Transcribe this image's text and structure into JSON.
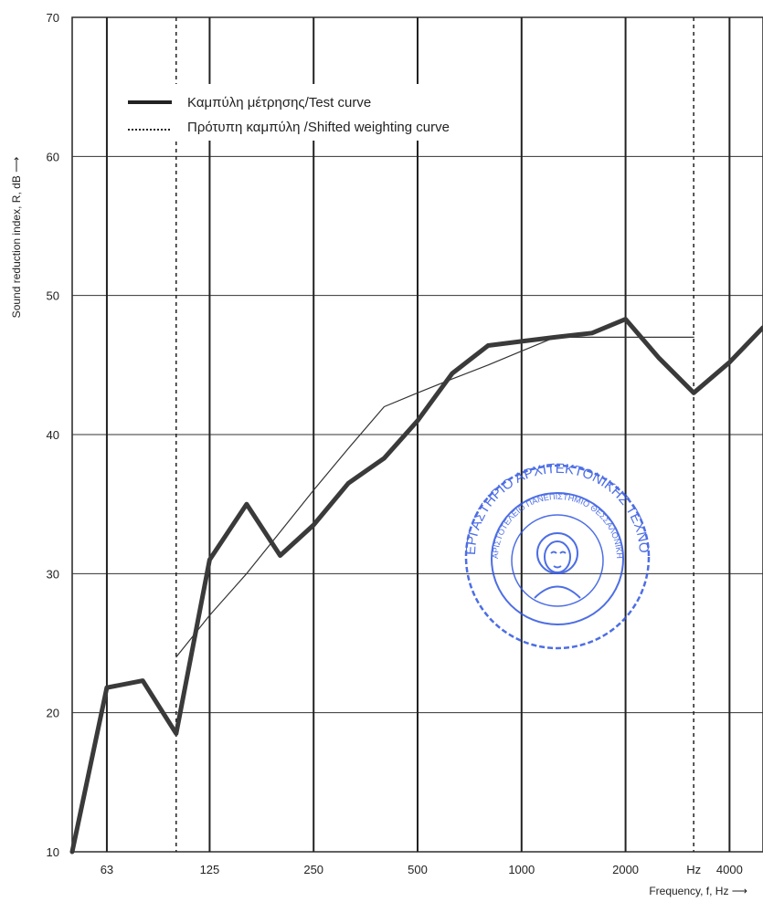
{
  "chart_data": {
    "type": "line",
    "xlabel": "Frequency, f, Hz ⟶",
    "ylabel": "Sound reduction index, R, dB ⟶",
    "x_scale": "log",
    "xlim": [
      50,
      5000
    ],
    "ylim": [
      10,
      70
    ],
    "y_ticks": [
      "10",
      "20",
      "30",
      "40",
      "50",
      "60",
      "70"
    ],
    "x_tick_labels": [
      {
        "x": 63,
        "label": "63"
      },
      {
        "x": 125,
        "label": "125"
      },
      {
        "x": 250,
        "label": "250"
      },
      {
        "x": 500,
        "label": "500"
      },
      {
        "x": 1000,
        "label": "1000"
      },
      {
        "x": 2000,
        "label": "2000"
      },
      {
        "x": 3150,
        "label": "Hz"
      },
      {
        "x": 4000,
        "label": "4000"
      }
    ],
    "grid": true,
    "legend_position": "top-left",
    "series": [
      {
        "name": "Καμπύλη μέτρησης/Test curve",
        "style": "thick-solid",
        "color": "#3a3a3a",
        "x": [
          50,
          63,
          80,
          100,
          125,
          160,
          200,
          250,
          315,
          400,
          500,
          630,
          800,
          1000,
          1250,
          1600,
          2000,
          2500,
          3150,
          4000,
          5000
        ],
        "y": [
          10,
          21.8,
          22.3,
          18.5,
          31,
          35,
          31.3,
          33.5,
          36.5,
          38.3,
          41,
          44.4,
          46.4,
          46.7,
          47,
          47.3,
          48.3,
          45.5,
          43,
          45.2,
          47.7
        ]
      },
      {
        "name": "Πρότυπη καμπύλη /Shifted weighting curve",
        "style": "thin-dotted",
        "color": "#333333",
        "x": [
          100,
          125,
          160,
          200,
          250,
          315,
          400,
          500,
          630,
          800,
          1000,
          1250,
          1600,
          2000,
          2500,
          3150
        ],
        "y": [
          24,
          27,
          30,
          33,
          36,
          39,
          42,
          43,
          44,
          45,
          46,
          47,
          47,
          47,
          47,
          47
        ]
      }
    ]
  },
  "stamp": {
    "text_outer": "ΕΡΓΑΣΤΗΡΙΟ ΑΡΧΙΤΕΚΤΟΝΙΚΗΣ ΤΕΧΝΟΛΟΓΙΑΣ",
    "text_inner": "ΑΡΙΣΤΟΤΕΛΕΙΟ ΠΑΝΕΠΙΣΤΗΜΙΟ ΘΕΣΣΑΛΟΝΙΚΗΣ",
    "color": "#2f55e0"
  }
}
